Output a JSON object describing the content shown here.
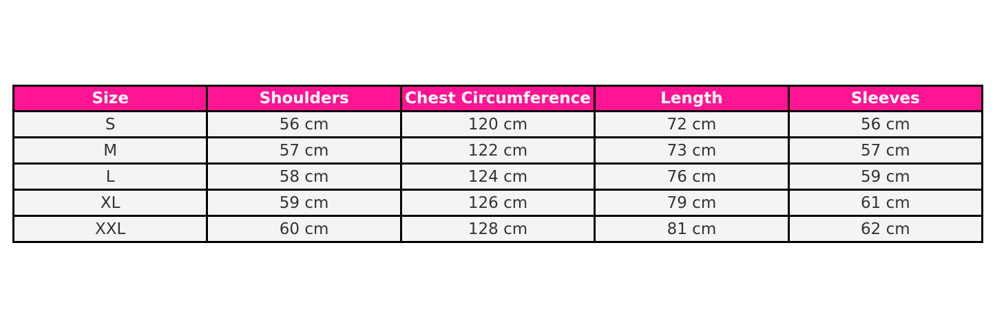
{
  "chart_data": {
    "type": "table",
    "columns": [
      "Size",
      "Shoulders",
      "Chest Circumference",
      "Length",
      "Sleeves"
    ],
    "rows": [
      [
        "S",
        "56 cm",
        "120 cm",
        "72 cm",
        "56 cm"
      ],
      [
        "M",
        "57 cm",
        "122 cm",
        "73 cm",
        "57 cm"
      ],
      [
        "L",
        "58 cm",
        "124 cm",
        "76 cm",
        "59 cm"
      ],
      [
        "XL",
        "59 cm",
        "126 cm",
        "79 cm",
        "61 cm"
      ],
      [
        "XXL",
        "60 cm",
        "128 cm",
        "81 cm",
        "62 cm"
      ]
    ],
    "header_color": "#ff1493",
    "header_text_color": "#ffffff",
    "cell_color": "#f4f4f4",
    "cell_text_color": "#333333"
  }
}
